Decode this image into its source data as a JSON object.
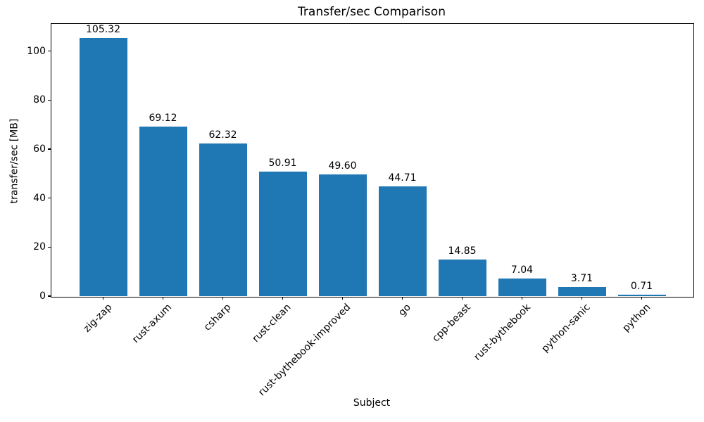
{
  "chart_data": {
    "type": "bar",
    "title": "Transfer/sec Comparison",
    "xlabel": "Subject",
    "ylabel": "transfer/sec [MB]",
    "categories": [
      "zig-zap",
      "rust-axum",
      "csharp",
      "rust-clean",
      "rust-bythebook-improved",
      "go",
      "cpp-beast",
      "rust-bythebook",
      "python-sanic",
      "python"
    ],
    "values": [
      105.32,
      69.12,
      62.32,
      50.91,
      49.6,
      44.71,
      14.85,
      7.04,
      3.71,
      0.71
    ],
    "value_labels": [
      "105.32",
      "69.12",
      "62.32",
      "50.91",
      "49.60",
      "44.71",
      "14.85",
      "7.04",
      "3.71",
      "0.71"
    ],
    "yticks": [
      0,
      20,
      40,
      60,
      80,
      100
    ],
    "ylim": [
      0,
      111.4
    ],
    "bar_color": "#1f77b4",
    "text_color": "#000000",
    "grid": false,
    "legend_position": "none",
    "xtick_rotation_deg": 45
  }
}
